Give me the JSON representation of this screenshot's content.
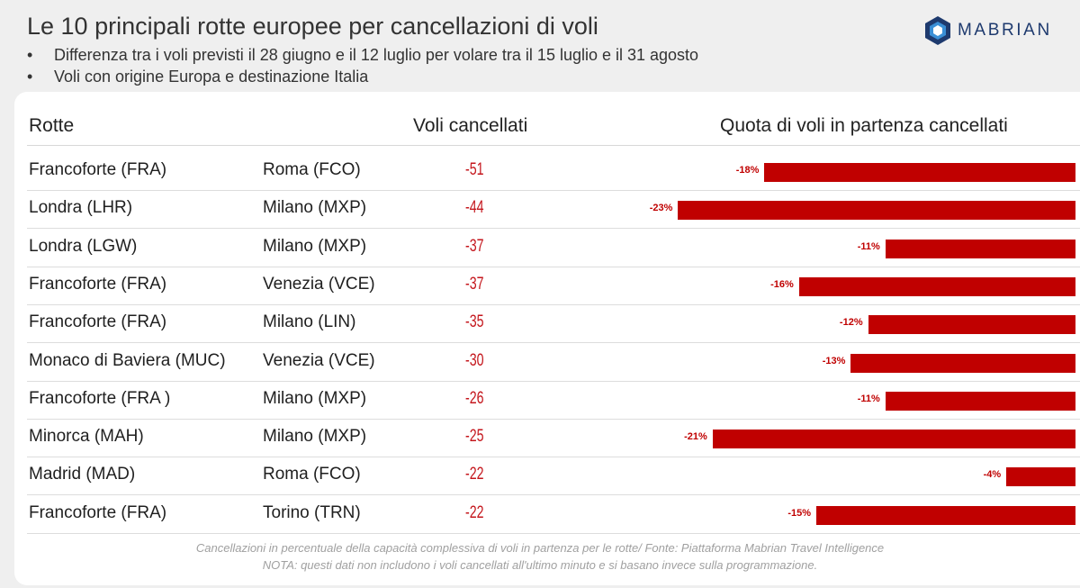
{
  "title": "Le 10 principali rotte europee per cancellazioni di voli",
  "bullets": [
    "Differenza tra i voli previsti il 28 giugno e il 12 luglio per volare tra il 15 luglio e il 31 agosto",
    "Voli con origine Europa e destinazione Italia"
  ],
  "bullet_marker": "•",
  "logo": {
    "text": "MABRIAN",
    "color": "#1e3a6e"
  },
  "headers": {
    "routes": "Rotte",
    "cancelled": "Voli cancellati",
    "share": "Quota di voli in partenza cancellati"
  },
  "chart_data": {
    "type": "bar",
    "orientation": "horizontal",
    "bar_color": "#c00000",
    "columns": [
      "Rotte",
      "Voli cancellati",
      "Quota di voli in partenza cancellati"
    ],
    "rows": [
      {
        "origin": "Francoforte (FRA)",
        "destination": "Roma (FCO)",
        "cancelled": "-51",
        "share": -18,
        "share_label": "-18%"
      },
      {
        "origin": "Londra (LHR)",
        "destination": "Milano (MXP)",
        "cancelled": "-44",
        "share": -23,
        "share_label": "-23%"
      },
      {
        "origin": "Londra (LGW)",
        "destination": "Milano (MXP)",
        "cancelled": "-37",
        "share": -11,
        "share_label": "-11%"
      },
      {
        "origin": "Francoforte (FRA)",
        "destination": "Venezia (VCE)",
        "cancelled": "-37",
        "share": -16,
        "share_label": "-16%"
      },
      {
        "origin": "Francoforte (FRA)",
        "destination": "Milano (LIN)",
        "cancelled": "-35",
        "share": -12,
        "share_label": "-12%"
      },
      {
        "origin": "Monaco di Baviera (MUC)",
        "destination": "Venezia (VCE)",
        "cancelled": "-30",
        "share": -13,
        "share_label": "-13%"
      },
      {
        "origin": "Francoforte (FRA )",
        "destination": "Milano (MXP)",
        "cancelled": "-26",
        "share": -11,
        "share_label": "-11%"
      },
      {
        "origin": "Minorca  (MAH)",
        "destination": "Milano (MXP)",
        "cancelled": "-25",
        "share": -21,
        "share_label": "-21%"
      },
      {
        "origin": "Madrid  (MAD)",
        "destination": "Roma (FCO)",
        "cancelled": "-22",
        "share": -4,
        "share_label": "-4%"
      },
      {
        "origin": "Francoforte (FRA)",
        "destination": "Torino (TRN)",
        "cancelled": "-22",
        "share": -15,
        "share_label": "-15%"
      }
    ]
  },
  "footnotes": [
    "Cancellazioni in percentuale della capacità complessiva di voli in partenza per le rotte/ Fonte: Piattaforma Mabrian Travel Intelligence",
    "NOTA: questi dati non includono i voli cancellati all'ultimo minuto e si basano invece sulla programmazione."
  ]
}
